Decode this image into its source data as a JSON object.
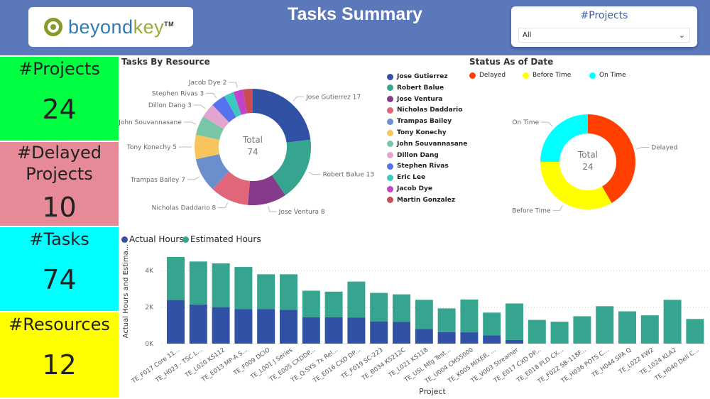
{
  "header": {
    "title": "Tasks Summary",
    "logo_text": "beyondkey",
    "logo_tm": "TM"
  },
  "slicer": {
    "title": "#Projects",
    "value": "All",
    "icon": "chevron-down-icon"
  },
  "kpis": [
    {
      "label": "#Projects",
      "value": "24",
      "color": "#00ff40"
    },
    {
      "label": "#Delayed Projects",
      "value": "10",
      "color": "#e68a97"
    },
    {
      "label": "#Tasks",
      "value": "74",
      "color": "#00ffff"
    },
    {
      "label": "#Resources",
      "value": "12",
      "color": "#ffff00"
    }
  ],
  "chart_data": [
    {
      "type": "pie",
      "title": "Tasks By Resource",
      "center_label": "Total",
      "center_value": "74",
      "categories": [
        "Jose Gutierrez",
        "Robert Balue",
        "Jose Ventura",
        "Nicholas Daddario",
        "Trampas Bailey",
        "Tony Konechy",
        "John Souvannasane",
        "Dillon Dang",
        "Stephen Rivas",
        "Eric Lee",
        "Jacob Dye",
        "Martin Gonzalez"
      ],
      "values": [
        17,
        13,
        8,
        8,
        7,
        5,
        4,
        3,
        3,
        2,
        2,
        2
      ],
      "data_labels": [
        "Jose Gutierrez 17",
        "Robert Balue 13",
        "Jose Ventura 8",
        "Nicholas Daddario 8",
        "Trampas Bailey 7",
        "Tony Konechy 5",
        "John Souvannasane",
        "Dillon Dang 3",
        "Stephen Rivas 3",
        "",
        "Jacob Dye 2",
        ""
      ],
      "colors": [
        "#3051a4",
        "#35a58f",
        "#863b8a",
        "#e0677a",
        "#6b8fcc",
        "#f7c45e",
        "#78c6a5",
        "#e3a5d0",
        "#5672ec",
        "#3ec8c0",
        "#c143c9",
        "#cc4b52"
      ],
      "legend": "right"
    },
    {
      "type": "pie",
      "title": "Status As of Date",
      "center_label": "Total",
      "center_value": "24",
      "categories": [
        "Delayed",
        "Before Time",
        "On Time"
      ],
      "values": [
        10,
        8,
        6
      ],
      "colors": [
        "#ff4000",
        "#ffff00",
        "#00ffff"
      ],
      "legend": "top"
    },
    {
      "type": "bar",
      "stacked": true,
      "xlabel": "Project",
      "ylabel": "Actual Hours and Estima...",
      "yticks": [
        "0K",
        "2K",
        "4K"
      ],
      "ylim": [
        0,
        5000
      ],
      "grid": true,
      "legend": "top-left",
      "categories": [
        "TE_F017 Core 11...",
        "TE_H023 - TSC L...",
        "TE_L020 KS112",
        "TE_E013 MP-A S...",
        "TE_F009 DCIO",
        "TE_L001 J Series",
        "TE_E005 CXDDP...",
        "TE_Q-SYS 7x Rel...",
        "TE_E016 CXD DP...",
        "TE_F019 SC-223",
        "TE_B034 KS212C",
        "TE_L021 KS118",
        "TE_USL Mfg Test...",
        "TE_U004 CMS5000",
        "TE_K005 MIXER, ...",
        "TE_V003 Streamer",
        "TE_E017 CXD DP...",
        "TE_E018 PLD CX...",
        "TE_F022 SB-118F...",
        "TE_H036 POTS C...",
        "TE_H044 SPA Q",
        "TE_L022 KW2",
        "TE_L024 KLA2",
        "TE_H040 Dell C..."
      ],
      "series": [
        {
          "name": "Actual Hours",
          "color": "#3051a4",
          "values": [
            2400,
            2150,
            2000,
            1900,
            1900,
            1850,
            1450,
            1450,
            1420,
            1220,
            1200,
            800,
            630,
            620,
            450,
            200,
            0,
            0,
            0,
            0,
            0,
            0,
            0,
            0
          ]
        },
        {
          "name": "Estimated Hours",
          "color": "#35a58f",
          "values": [
            2350,
            2350,
            2400,
            2300,
            1900,
            1950,
            1450,
            1400,
            1980,
            1560,
            1500,
            1600,
            1300,
            1800,
            1250,
            2000,
            1300,
            1200,
            1500,
            2050,
            1770,
            1550,
            2400,
            1350
          ]
        }
      ]
    }
  ]
}
